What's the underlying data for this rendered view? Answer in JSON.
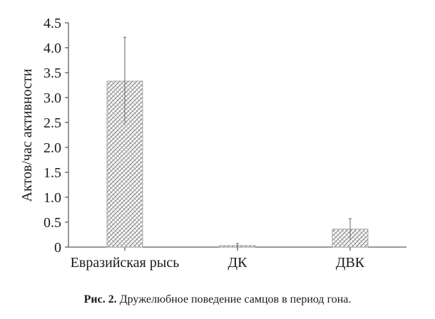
{
  "chart_data": {
    "type": "bar",
    "categories": [
      "Евразийская рысь",
      "ДК",
      "ДВК"
    ],
    "values": [
      3.33,
      0.03,
      0.36
    ],
    "errors": [
      0.88,
      0.04,
      0.21
    ],
    "xlabel": "",
    "ylabel": "Актов/час активности",
    "ylim": [
      0,
      4.5
    ],
    "yticks": [
      "0",
      "0.5",
      "1.0",
      "1.5",
      "2.0",
      "2.5",
      "3.0",
      "3.5",
      "4.0",
      "4.5"
    ],
    "grid": false,
    "bar_fill": "hatched"
  },
  "caption": {
    "label": "Рис. 2.",
    "text": " Дружелюбное поведение самцов в период гона."
  }
}
